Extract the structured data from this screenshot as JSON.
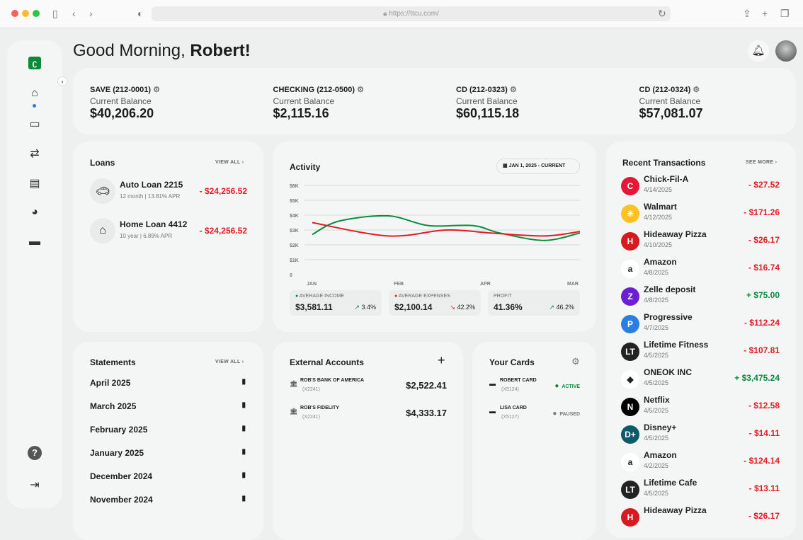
{
  "browser": {
    "url": "https://ttcu.com/"
  },
  "header": {
    "greeting": "Good Morning, ",
    "name": "Robert!"
  },
  "accounts": [
    {
      "title": "SAVE (212-0001)",
      "label": "Current Balance",
      "balance": "$40,206.20"
    },
    {
      "title": "CHECKING (212-0500)",
      "label": "Current Balance",
      "balance": "$2,115.16"
    },
    {
      "title": "CD (212-0323)",
      "label": "Current Balance",
      "balance": "$60,115.18"
    },
    {
      "title": "CD (212-0324)",
      "label": "Current Balance",
      "balance": "$57,081.07"
    }
  ],
  "loans": {
    "title": "Loans",
    "view_all": "VIEW ALL",
    "items": [
      {
        "name": "Auto Loan 2215",
        "detail": "12 month | 13.81% APR",
        "amount": "- $24,256.52",
        "icon": "car-icon"
      },
      {
        "name": "Home Loan 4412",
        "detail": "10 year | 6.89% APR",
        "amount": "- $24,256.52",
        "icon": "home-icon"
      }
    ]
  },
  "activity": {
    "title": "Activity",
    "date_range": "JAN 1, 2025 - CURRENT",
    "stats": [
      {
        "label": "AVERAGE INCOME",
        "value": "$3,581.11",
        "change": "3.4%",
        "trend": "up"
      },
      {
        "label": "AVERAGE EXPENSES",
        "value": "$2,100.14",
        "change": "42.2%",
        "trend": "down"
      },
      {
        "label": "PROFIT",
        "value": "41.36%",
        "change": "46.2%",
        "trend": "up"
      }
    ]
  },
  "chart_data": {
    "type": "line",
    "categories": [
      "JAN",
      "FEB",
      "APR",
      "MAR"
    ],
    "yticks": [
      "0",
      "$1K",
      "$2K",
      "$3K",
      "$4K",
      "$5K",
      "$6K"
    ],
    "ylim": [
      0,
      6000
    ],
    "grid": true,
    "series": [
      {
        "name": "AVERAGE INCOME",
        "color": "#0b8a3c",
        "points": [
          [
            0,
            2700
          ],
          [
            0.3,
            3600
          ],
          [
            0.85,
            3950
          ],
          [
            1.3,
            3300
          ],
          [
            1.8,
            3300
          ],
          [
            2.1,
            2800
          ],
          [
            2.6,
            2300
          ],
          [
            3,
            2800
          ]
        ]
      },
      {
        "name": "AVERAGE EXPENSES",
        "color": "#e31b23",
        "points": [
          [
            0,
            3500
          ],
          [
            0.85,
            2600
          ],
          [
            1.5,
            3000
          ],
          [
            2.0,
            2800
          ],
          [
            2.6,
            2600
          ],
          [
            3,
            2900
          ]
        ]
      }
    ]
  },
  "transactions": {
    "title": "Recent Transactions",
    "see_more": "SEE MORE",
    "items": [
      {
        "name": "Chick-Fil-A",
        "date": "4/14/2025",
        "amount": "- $27.52",
        "type": "debit",
        "logo": "C",
        "color": "#e51636"
      },
      {
        "name": "Walmart",
        "date": "4/12/2025",
        "amount": "- $171.26",
        "type": "debit",
        "logo": "✳",
        "color": "#ffc220"
      },
      {
        "name": "Hideaway Pizza",
        "date": "4/10/2025",
        "amount": "- $26.17",
        "type": "debit",
        "logo": "H",
        "color": "#d71920"
      },
      {
        "name": "Amazon",
        "date": "4/8/2025",
        "amount": "- $16.74",
        "type": "debit",
        "logo": "a",
        "color": "#ffffff"
      },
      {
        "name": "Zelle deposit",
        "date": "4/8/2025",
        "amount": "+ $75.00",
        "type": "credit",
        "logo": "Z",
        "color": "#6d1ed4"
      },
      {
        "name": "Progressive",
        "date": "4/7/2025",
        "amount": "- $112.24",
        "type": "debit",
        "logo": "P",
        "color": "#2a7de1"
      },
      {
        "name": "Lifetime Fitness",
        "date": "4/5/2025",
        "amount": "- $107.81",
        "type": "debit",
        "logo": "LT",
        "color": "#222222"
      },
      {
        "name": "ONEOK INC",
        "date": "4/5/2025",
        "amount": "+ $3,475.24",
        "type": "credit",
        "logo": "◆",
        "color": "#ffffff"
      },
      {
        "name": "Netflix",
        "date": "4/5/2025",
        "amount": "- $12.58",
        "type": "debit",
        "logo": "N",
        "color": "#000000"
      },
      {
        "name": "Disney+",
        "date": "4/5/2025",
        "amount": "- $14.11",
        "type": "debit",
        "logo": "D+",
        "color": "#0e5a6b"
      },
      {
        "name": "Amazon",
        "date": "4/2/2025",
        "amount": "- $124.14",
        "type": "debit",
        "logo": "a",
        "color": "#ffffff"
      },
      {
        "name": "Lifetime Cafe",
        "date": "4/5/2025",
        "amount": "- $13.11",
        "type": "debit",
        "logo": "LT",
        "color": "#222222"
      },
      {
        "name": "Hideaway Pizza",
        "date": "",
        "amount": "- $26.17",
        "type": "debit",
        "logo": "H",
        "color": "#d71920"
      }
    ]
  },
  "statements": {
    "title": "Statements",
    "view_all": "VIEW ALL",
    "items": [
      "April 2025",
      "March 2025",
      "February 2025",
      "January 2025",
      "December 2024",
      "November 2024"
    ]
  },
  "external": {
    "title": "External Accounts",
    "items": [
      {
        "name": "ROB'S BANK OF AMERICA",
        "acct": "(X2241)",
        "balance": "$2,522.41"
      },
      {
        "name": "ROB'S FIDELITY",
        "acct": "(X2241)",
        "balance": "$4,333.17"
      }
    ]
  },
  "cards": {
    "title": "Your Cards",
    "items": [
      {
        "name": "ROBERT CARD",
        "acct": "(X5124)",
        "status": "ACTIVE",
        "color": "#0b8a3c"
      },
      {
        "name": "LISA CARD",
        "acct": "(X5127)",
        "status": "PAUSED",
        "color": "#777777"
      }
    ]
  }
}
